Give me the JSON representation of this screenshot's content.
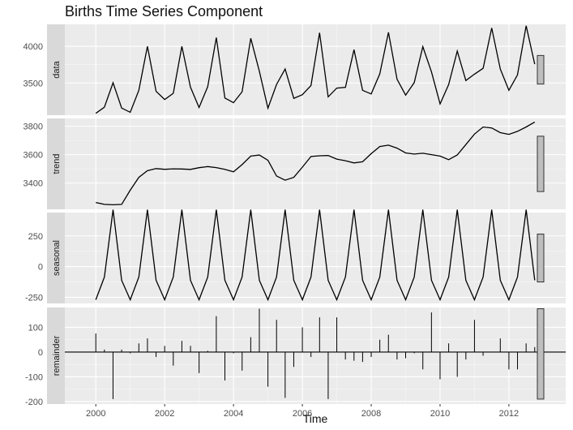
{
  "chart_data": {
    "type": "line",
    "title": "Births Time Series Component",
    "xlabel": "Time",
    "xlim": [
      1999.1,
      2013.65
    ],
    "x_ticks": [
      2000,
      2002,
      2004,
      2006,
      2008,
      2010,
      2012
    ],
    "x_tick_labels": [
      "2000",
      "2002",
      "2004",
      "2006",
      "2008",
      "2010",
      "2012"
    ],
    "x_start": 2000.0,
    "x_step": 0.25,
    "grid": true,
    "panels": [
      {
        "name": "data",
        "strip_label": "data",
        "series_type": "line",
        "ylim": [
          3060,
          4300
        ],
        "y_ticks": [
          3500,
          4000
        ],
        "y_tick_labels": [
          "3500",
          "4000"
        ],
        "values": [
          3086,
          3170,
          3503,
          3157,
          3100,
          3400,
          4000,
          3385,
          3275,
          3359,
          4000,
          3443,
          3165,
          3450,
          4120,
          3295,
          3230,
          3380,
          4110,
          3660,
          3155,
          3480,
          3690,
          3290,
          3340,
          3465,
          4185,
          3310,
          3430,
          3440,
          3955,
          3400,
          3350,
          3625,
          4190,
          3550,
          3335,
          3505,
          3995,
          3650,
          3214,
          3480,
          3935,
          3533,
          3620,
          3700,
          4250,
          3690,
          3400,
          3610,
          4280,
          3756
        ]
      },
      {
        "name": "trend",
        "strip_label": "trend",
        "series_type": "line",
        "ylim": [
          3215,
          3855
        ],
        "y_ticks": [
          3400,
          3600,
          3800
        ],
        "y_tick_labels": [
          "3400",
          "3600",
          "3800"
        ],
        "values": [
          3263,
          3250,
          3247,
          3250,
          3350,
          3440,
          3487,
          3502,
          3497,
          3500,
          3499,
          3496,
          3508,
          3516,
          3509,
          3496,
          3479,
          3530,
          3590,
          3597,
          3560,
          3450,
          3420,
          3440,
          3512,
          3587,
          3592,
          3594,
          3569,
          3557,
          3542,
          3550,
          3607,
          3657,
          3667,
          3646,
          3612,
          3604,
          3610,
          3600,
          3590,
          3565,
          3598,
          3671,
          3745,
          3795,
          3788,
          3755,
          3743,
          3764,
          3795,
          3830
        ]
      },
      {
        "name": "seasonal",
        "strip_label": "seasonal",
        "series_type": "line",
        "ylim": [
          -300,
          440
        ],
        "y_ticks": [
          -250,
          0,
          250
        ],
        "y_tick_labels": [
          "-250",
          "0",
          "250"
        ],
        "values": [
          -270,
          -85,
          463,
          -112,
          -270,
          -85,
          463,
          -112,
          -270,
          -85,
          463,
          -112,
          -270,
          -85,
          463,
          -112,
          -270,
          -85,
          463,
          -112,
          -270,
          -85,
          463,
          -112,
          -270,
          -85,
          463,
          -112,
          -270,
          -85,
          463,
          -112,
          -270,
          -85,
          463,
          -112,
          -270,
          -85,
          463,
          -112,
          -270,
          -85,
          463,
          -112,
          -270,
          -85,
          463,
          -112,
          -270,
          -85,
          463,
          -112
        ]
      },
      {
        "name": "remainder",
        "strip_label": "remainder",
        "series_type": "spikes",
        "ylim": [
          -210,
          180
        ],
        "y_ticks": [
          -200,
          -100,
          0,
          100
        ],
        "y_tick_labels": [
          "-200",
          "-100",
          "0",
          "100"
        ],
        "values": [
          75,
          10,
          -190,
          10,
          -5,
          35,
          55,
          -20,
          25,
          -55,
          45,
          25,
          -85,
          5,
          145,
          -115,
          -5,
          -75,
          60,
          175,
          -140,
          130,
          -185,
          -60,
          100,
          -20,
          140,
          -190,
          140,
          -30,
          -35,
          -40,
          -20,
          50,
          70,
          -30,
          -25,
          -5,
          -70,
          160,
          -110,
          35,
          -100,
          -30,
          130,
          -15,
          0,
          55,
          -70,
          -70,
          35,
          20
        ]
      }
    ],
    "scale_bar_half_range": 195
  },
  "colors": {
    "panel_bg": "#ebebeb",
    "grid_major": "#ffffff",
    "strip_bg": "#d9d9d9",
    "line": "#000000",
    "scale_bar_fill": "#bebebe",
    "tick_text": "#4d4d4d",
    "strip_text": "#1a1a1a"
  }
}
